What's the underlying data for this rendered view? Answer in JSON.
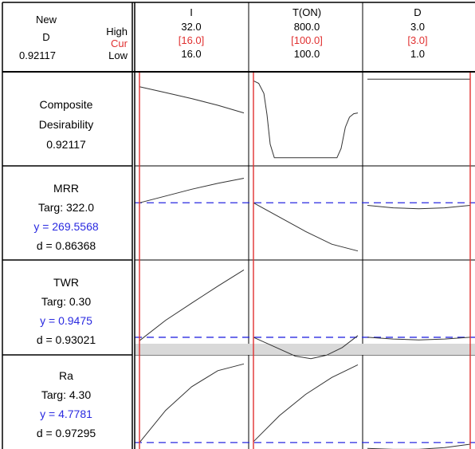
{
  "header": {
    "new_label": "New",
    "d_label": "D",
    "d_value": "0.92117",
    "high_label": "High",
    "cur_label": "Cur",
    "low_label": "Low"
  },
  "factors": [
    {
      "name": "I",
      "high": "32.0",
      "cur": "[16.0]",
      "low": "16.0"
    },
    {
      "name": "T(ON)",
      "high": "800.0",
      "cur": "[100.0]",
      "low": "100.0"
    },
    {
      "name": "D",
      "high": "3.0",
      "cur": "[3.0]",
      "low": "1.0"
    }
  ],
  "responses": [
    {
      "line1": "Composite",
      "line2": "Desirability",
      "line3": "0.92117",
      "line4": ""
    },
    {
      "line1": "MRR",
      "line2": "Targ: 322.0",
      "line3": "y = 269.5568",
      "line4": "d = 0.86368"
    },
    {
      "line1": "TWR",
      "line2": "Targ: 0.30",
      "line3": "y = 0.9475",
      "line4": "d = 0.93021"
    },
    {
      "line1": "Ra",
      "line2": "Targ: 4.30",
      "line3": "y = 4.7781",
      "line4": "d = 0.97295"
    }
  ],
  "colors": {
    "current_line": "#e03030",
    "target_line": "#2a2ae0",
    "y_text": "#2a2ae0",
    "cur_text": "#e03030",
    "curve": "#333333",
    "band": "#d9d9d9"
  },
  "chart_data": {
    "type": "line",
    "description": "Response optimization plot: each response row vs each factor column; curves normalized 0-1 within cell, x normalized 0-1 across factor range",
    "curves": [
      [
        {
          "x": [
            0,
            0.25,
            0.5,
            0.75,
            1
          ],
          "y": [
            0.88,
            0.81,
            0.74,
            0.66,
            0.57
          ]
        },
        {
          "x": [
            0,
            0.05,
            0.1,
            0.13,
            0.16,
            0.2,
            0.4,
            0.6,
            0.8,
            0.84,
            0.88,
            0.92,
            0.96,
            1
          ],
          "y": [
            0.95,
            0.92,
            0.8,
            0.55,
            0.2,
            0.04,
            0.04,
            0.04,
            0.04,
            0.15,
            0.4,
            0.52,
            0.56,
            0.57
          ]
        },
        {
          "x": [
            0,
            0.5,
            1
          ],
          "y": [
            0.97,
            0.97,
            0.97
          ]
        }
      ],
      [
        {
          "x": [
            0,
            0.25,
            0.5,
            0.75,
            1
          ],
          "y": [
            0.62,
            0.7,
            0.78,
            0.85,
            0.91
          ]
        },
        {
          "x": [
            0,
            0.25,
            0.5,
            0.75,
            1
          ],
          "y": [
            0.62,
            0.45,
            0.28,
            0.13,
            0.05
          ]
        },
        {
          "x": [
            0,
            0.25,
            0.5,
            0.75,
            1
          ],
          "y": [
            0.59,
            0.56,
            0.55,
            0.56,
            0.59
          ]
        }
      ],
      [
        {
          "x": [
            0,
            0.25,
            0.5,
            0.75,
            1
          ],
          "y": [
            0.11,
            0.35,
            0.55,
            0.75,
            0.94
          ]
        },
        {
          "x": [
            0,
            0.2,
            0.4,
            0.55,
            0.7,
            0.85,
            1
          ],
          "y": [
            0.15,
            0.04,
            -0.07,
            -0.1,
            -0.06,
            0.03,
            0.17
          ]
        },
        {
          "x": [
            0,
            0.25,
            0.5,
            0.75,
            1
          ],
          "y": [
            0.15,
            0.13,
            0.12,
            0.13,
            0.15
          ]
        }
      ],
      [
        {
          "x": [
            0,
            0.25,
            0.5,
            0.75,
            1
          ],
          "y": [
            0.02,
            0.4,
            0.68,
            0.87,
            0.95
          ]
        },
        {
          "x": [
            0,
            0.25,
            0.5,
            0.75,
            1
          ],
          "y": [
            0.03,
            0.34,
            0.59,
            0.79,
            0.94
          ]
        },
        {
          "x": [
            0,
            0.25,
            0.5,
            0.75,
            1
          ],
          "y": [
            -0.05,
            -0.06,
            -0.06,
            -0.04,
            0.0
          ]
        }
      ]
    ],
    "target_level": [
      null,
      0.62,
      0.15,
      0.02
    ],
    "current_x": [
      0,
      0,
      1
    ]
  }
}
